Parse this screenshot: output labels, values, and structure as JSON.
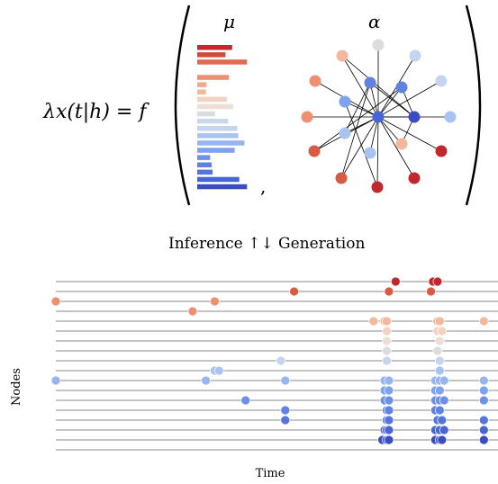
{
  "formula": {
    "lhs": "λx(t|h) = f",
    "mu_label": "μ",
    "alpha_label": "α",
    "comma": ","
  },
  "colors": {
    "dark_red": "#c1272d",
    "red": "#d95b43",
    "salmon": "#ee8f71",
    "peach": "#f4b89a",
    "light_peach": "#f2d2c0",
    "light_gray": "#dddcdc",
    "pale_blue": "#c5d5f0",
    "light_blue": "#a8c3f1",
    "blue": "#7da2ee",
    "mid_blue": "#5f82e3",
    "royal_blue": "#4866d3",
    "dark_blue": "#3a4cc0",
    "line_gray": "#8a8a8a"
  },
  "mu_bars": {
    "values": [
      0.68,
      0.55,
      0.97,
      0.62,
      0.18,
      0.17,
      0.58,
      0.7,
      0.35,
      0.6,
      0.78,
      0.8,
      0.92,
      0.73,
      0.25,
      0.28,
      0.3,
      0.82,
      0.97
    ],
    "colors": [
      "#c1272d",
      "#d14a3c",
      "#e26a50",
      "#ee8f71",
      "#f2a98a",
      "#f4b89a",
      "#f2d2c0",
      "#eedfd6",
      "#dddcdc",
      "#cad8ee",
      "#c5d5f0",
      "#a8c3f1",
      "#95b4f0",
      "#7da2ee",
      "#6d90e8",
      "#5f82e3",
      "#5574dc",
      "#4866d3",
      "#3a4cc0"
    ]
  },
  "alpha_graph": {
    "center": "#4866d3",
    "nodes": [
      {
        "color": "#dddcdc"
      },
      {
        "color": "#c5d5f0"
      },
      {
        "color": "#f4b89a"
      },
      {
        "color": "#ee8f71"
      },
      {
        "color": "#7da2ee"
      },
      {
        "color": "#5f82e3"
      },
      {
        "color": "#a8c3f1"
      },
      {
        "color": "#7da2ee"
      },
      {
        "color": "#3a4cc0"
      },
      {
        "color": "#a8c3f1"
      },
      {
        "color": "#ee8f71"
      },
      {
        "color": "#a8c3f1"
      },
      {
        "color": "#f4b89a"
      },
      {
        "color": "#c1272d"
      },
      {
        "color": "#ee8f71"
      },
      {
        "color": "#d95b43"
      },
      {
        "color": "#d95b43"
      },
      {
        "color": "#c1272d"
      },
      {
        "color": "#f2d2c0"
      }
    ]
  },
  "middle_label": "Inference ↑↓ Generation",
  "timeline": {
    "ylabel": "Nodes",
    "xlabel": "Time",
    "row_colors": [
      "#c1272d",
      "#d95b43",
      "#ee8f71",
      "#ee8f71",
      "#f4b89a",
      "#f2d2c0",
      "#eedfd6",
      "#dddcdc",
      "#c5d5f0",
      "#a8c3f1",
      "#95b4f0",
      "#7da2ee",
      "#6d90e8",
      "#5f82e3",
      "#5574dc",
      "#4866d3",
      "#3a4cc0",
      "#3a4cc0"
    ],
    "events": [
      [
        0.77,
        0.855,
        0.865
      ],
      [
        0.54,
        0.755,
        0.85
      ],
      [
        0.0,
        0.36
      ],
      [
        0.31
      ],
      [
        0.72,
        0.745,
        0.75,
        0.865,
        0.87,
        0.97
      ],
      [
        0.75,
        0.865,
        0.875
      ],
      [
        0.75,
        0.87
      ],
      [
        0.75,
        0.865
      ],
      [
        0.51,
        0.75,
        0.87
      ],
      [
        0.36,
        0.37,
        0.87
      ],
      [
        0.0,
        0.34,
        0.52,
        0.745,
        0.755,
        0.86,
        0.87,
        0.88,
        0.97
      ],
      [
        0.745,
        0.755,
        0.86,
        0.87,
        0.97
      ],
      [
        0.43,
        0.745,
        0.755,
        0.86,
        0.87,
        0.88,
        0.97
      ],
      [
        0.52,
        0.75,
        0.755,
        0.86,
        0.87
      ],
      [
        0.52,
        0.75,
        0.755,
        0.865,
        0.875,
        0.97
      ],
      [
        0.745,
        0.75,
        0.755,
        0.86,
        0.87,
        0.88,
        0.97
      ],
      [
        0.74,
        0.75,
        0.755,
        0.86,
        0.87,
        0.875,
        0.97
      ],
      []
    ]
  }
}
